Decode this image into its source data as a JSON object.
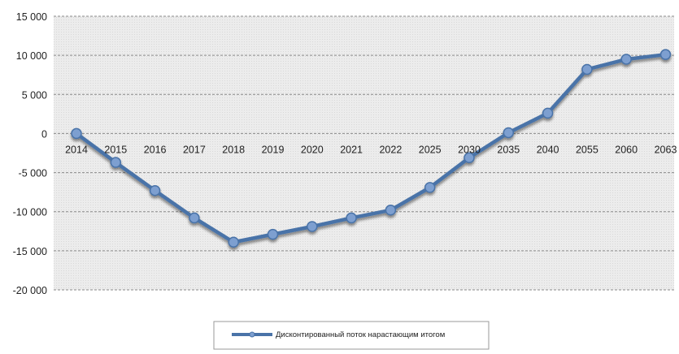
{
  "chart_data": {
    "type": "line",
    "title": "",
    "xlabel": "",
    "ylabel": "",
    "ylim": [
      -20000,
      15000
    ],
    "yticks": [
      15000,
      10000,
      5000,
      0,
      -5000,
      -10000,
      -15000,
      -20000
    ],
    "ytick_labels": [
      "15 000",
      "10 000",
      "5 000",
      "0",
      "-5 000",
      "-10 000",
      "-15 000",
      "-20 000"
    ],
    "categories": [
      "2014",
      "2015",
      "2016",
      "2017",
      "2018",
      "2019",
      "2020",
      "2021",
      "2022",
      "2025",
      "2030",
      "2035",
      "2040",
      "2055",
      "2060",
      "2063"
    ],
    "series": [
      {
        "name": "Дисконтированный поток нарастающим итогом",
        "values": [
          0,
          -3700,
          -7300,
          -10800,
          -13900,
          -12900,
          -11900,
          -10800,
          -9800,
          -6900,
          -3100,
          100,
          2600,
          8200,
          9500,
          10100
        ],
        "color": "#4a73a8",
        "marker_color": "#7d9fd0"
      }
    ],
    "grid": true,
    "legend_position": "bottom"
  }
}
